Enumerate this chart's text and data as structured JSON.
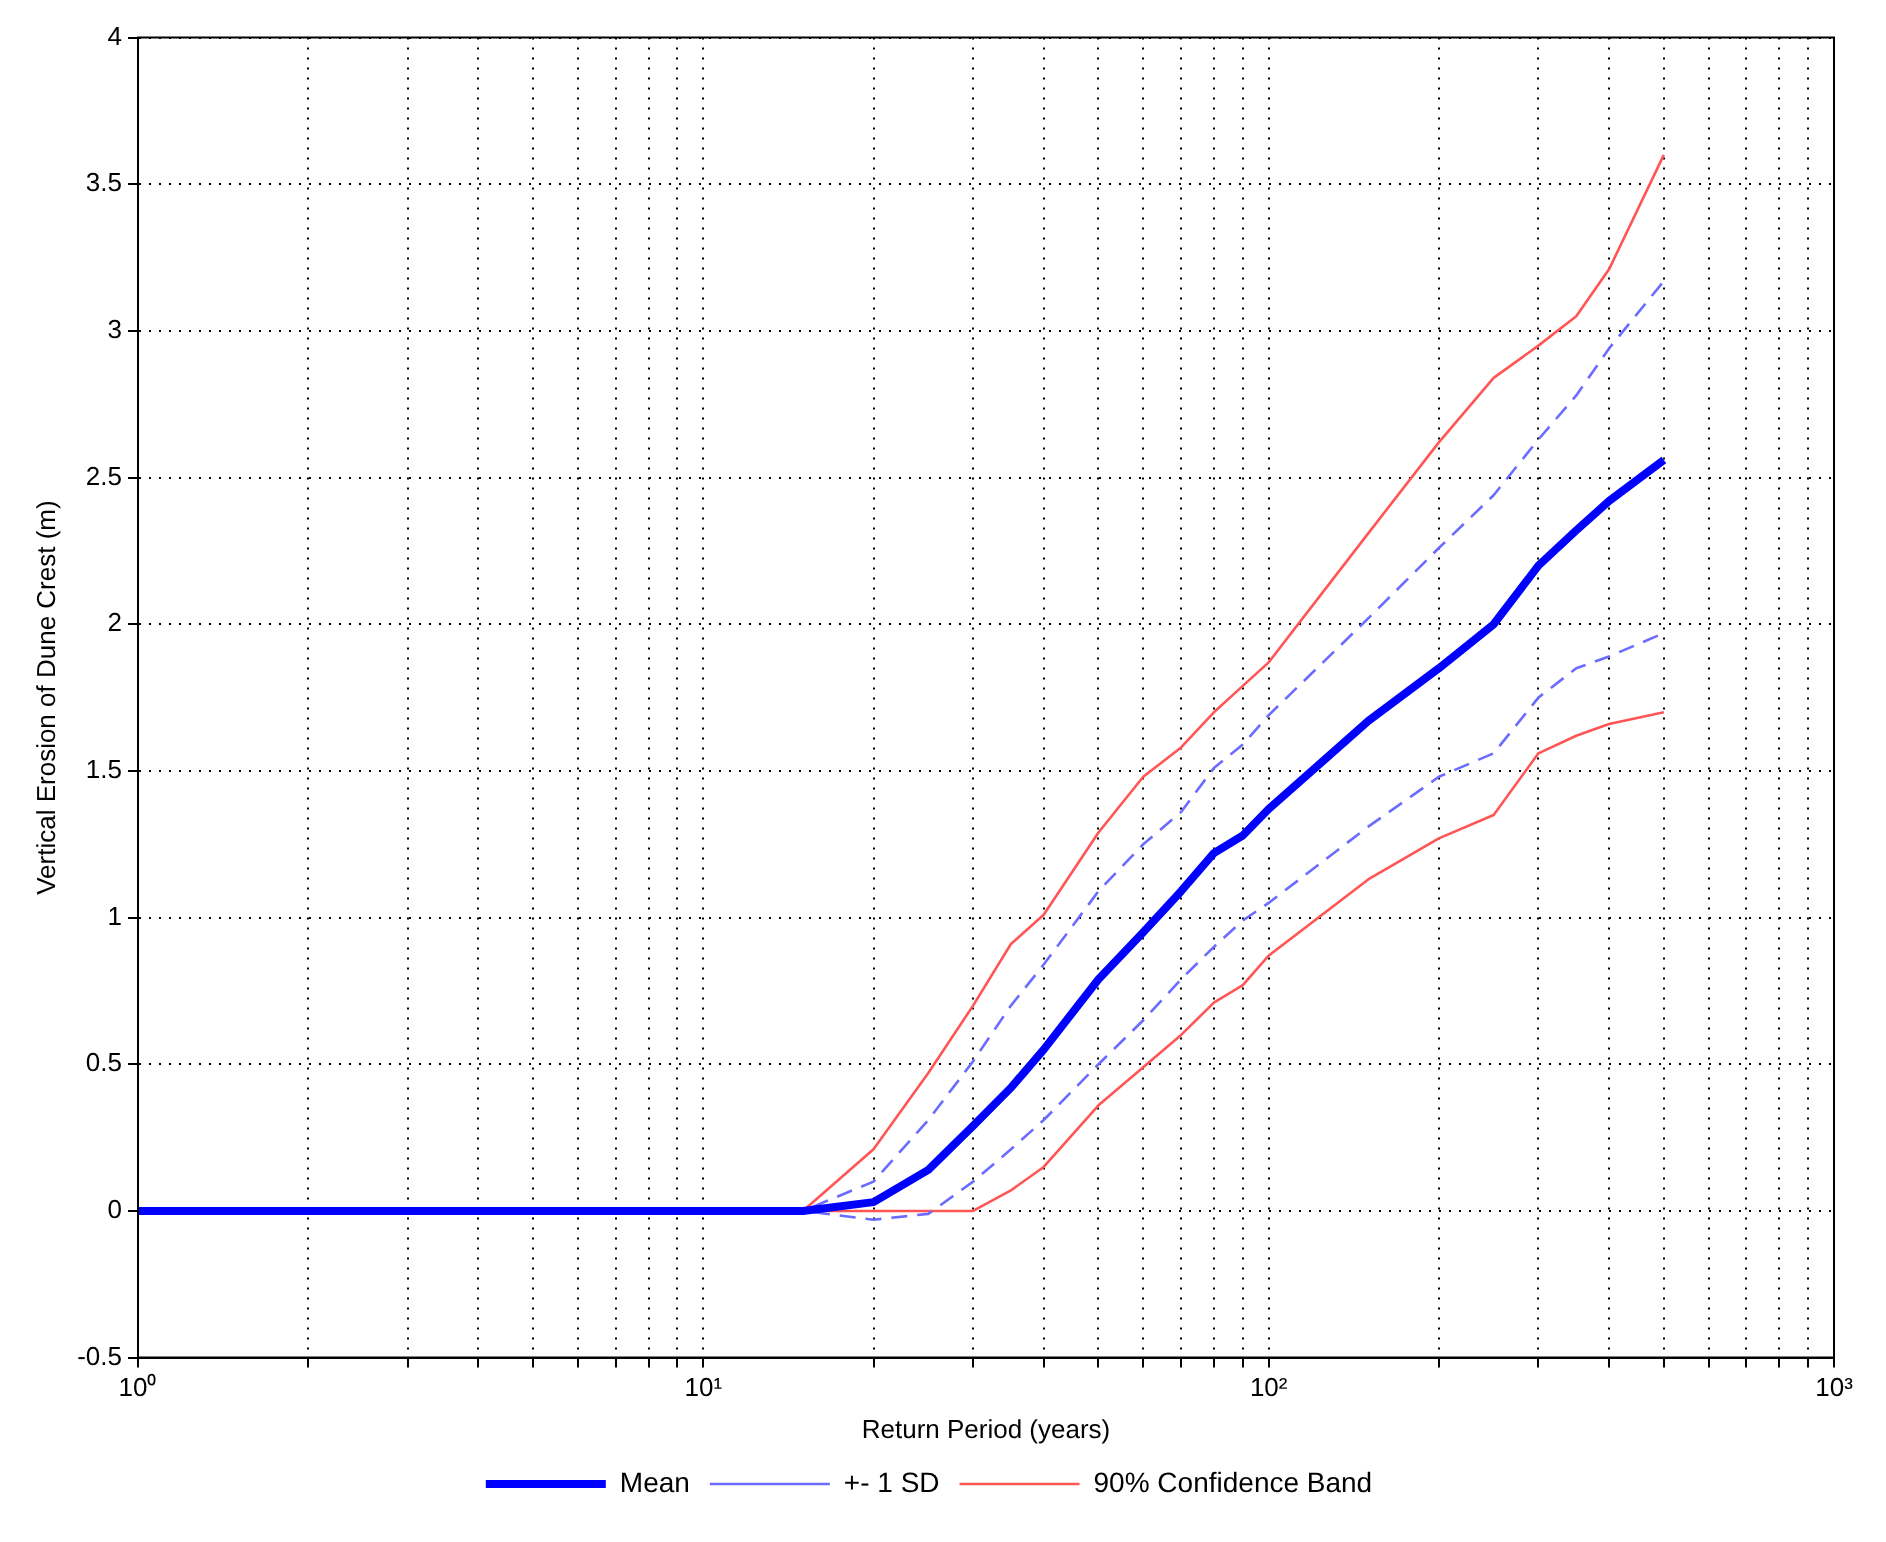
{
  "chart_data": {
    "type": "line",
    "xlabel": "Return Period (years)",
    "ylabel": "Vertical Erosion of Dune Crest (m)",
    "x": [
      1,
      15,
      20,
      25,
      30,
      35,
      40,
      50,
      60,
      70,
      80,
      90,
      100,
      150,
      200,
      250,
      300,
      350,
      400,
      500
    ],
    "series": [
      {
        "name": "Mean",
        "color": "#0000ff",
        "line_style": "solid",
        "values": [
          0,
          0,
          0.03,
          0.14,
          0.29,
          0.42,
          0.55,
          0.79,
          0.95,
          1.09,
          1.22,
          1.28,
          1.37,
          1.67,
          1.85,
          2.0,
          2.2,
          2.32,
          2.42,
          2.56
        ]
      },
      {
        "name": "+- 1 SD",
        "color": "#6b6bff",
        "line_style": "dashed",
        "values": [
          0,
          0,
          0.1,
          0.31,
          0.51,
          0.7,
          0.84,
          1.09,
          1.25,
          1.36,
          1.51,
          1.59,
          1.69,
          2.02,
          2.26,
          2.44,
          2.63,
          2.78,
          2.94,
          3.17
        ]
      },
      {
        "color": "#6b6bff",
        "line_style": "dashed",
        "values": [
          0,
          0,
          -0.03,
          -0.01,
          0.1,
          0.21,
          0.31,
          0.5,
          0.65,
          0.79,
          0.9,
          0.99,
          1.05,
          1.31,
          1.48,
          1.56,
          1.75,
          1.85,
          1.89,
          1.97
        ]
      },
      {
        "name": "90% Confidence Band",
        "color": "#ff5555",
        "line_style": "solid",
        "values": [
          0,
          0,
          0.21,
          0.47,
          0.7,
          0.91,
          1.01,
          1.29,
          1.48,
          1.58,
          1.7,
          1.79,
          1.87,
          2.31,
          2.62,
          2.84,
          2.95,
          3.05,
          3.21,
          3.6
        ]
      },
      {
        "color": "#ff5555",
        "line_style": "solid",
        "values": [
          0,
          0,
          0,
          0,
          0,
          0.07,
          0.15,
          0.36,
          0.49,
          0.6,
          0.71,
          0.77,
          0.87,
          1.13,
          1.27,
          1.35,
          1.56,
          1.62,
          1.66,
          1.7
        ]
      }
    ],
    "log": "x",
    "xlim": [
      1,
      1000
    ],
    "xticks": [
      {
        "value": 1,
        "label": "10⁰"
      },
      {
        "value": 2,
        "label": null
      },
      {
        "value": 3,
        "label": null
      },
      {
        "value": 4,
        "label": null
      },
      {
        "value": 5,
        "label": null
      },
      {
        "value": 6,
        "label": null
      },
      {
        "value": 7,
        "label": null
      },
      {
        "value": 8,
        "label": null
      },
      {
        "value": 9,
        "label": null
      },
      {
        "value": 10,
        "label": "10¹"
      },
      {
        "value": 20,
        "label": null
      },
      {
        "value": 30,
        "label": null
      },
      {
        "value": 40,
        "label": null
      },
      {
        "value": 50,
        "label": null
      },
      {
        "value": 60,
        "label": null
      },
      {
        "value": 70,
        "label": null
      },
      {
        "value": 80,
        "label": null
      },
      {
        "value": 90,
        "label": null
      },
      {
        "value": 100,
        "label": "10²"
      },
      {
        "value": 200,
        "label": null
      },
      {
        "value": 300,
        "label": null
      },
      {
        "value": 400,
        "label": null
      },
      {
        "value": 500,
        "label": null
      },
      {
        "value": 600,
        "label": null
      },
      {
        "value": 700,
        "label": null
      },
      {
        "value": 800,
        "label": null
      },
      {
        "value": 900,
        "label": null
      },
      {
        "value": 1000,
        "label": "10³"
      }
    ],
    "ylim": [
      -0.5,
      4
    ],
    "yticks": [
      -0.5,
      0,
      0.5,
      1,
      1.5,
      2,
      2.5,
      3,
      3.5,
      4
    ],
    "grid": true,
    "legend": "bottom",
    "marker": "none"
  }
}
